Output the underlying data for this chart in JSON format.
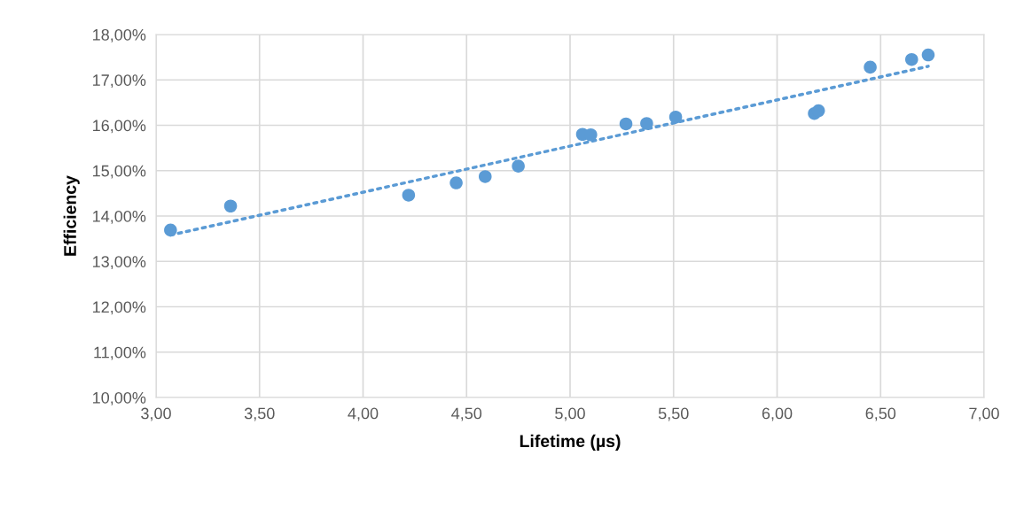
{
  "chart_data": {
    "type": "scatter",
    "xlabel": "Lifetime (µs)",
    "ylabel": "Efficiency",
    "x": [
      3.07,
      3.36,
      4.22,
      4.45,
      4.59,
      4.75,
      5.06,
      5.1,
      5.27,
      5.37,
      5.51,
      6.18,
      6.2,
      6.45,
      6.65,
      6.73
    ],
    "series": [
      {
        "color": "#5b9bd5",
        "marker": "circle",
        "values": [
          13.69,
          14.22,
          14.46,
          14.73,
          14.87,
          15.1,
          15.8,
          15.79,
          16.03,
          16.04,
          16.18,
          16.26,
          16.32,
          17.28,
          17.45,
          17.55
        ]
      },
      {
        "type": "line",
        "color": "#5b9bd5",
        "line_style": "dotted",
        "x": [
          3.07,
          6.73
        ],
        "values": [
          13.58,
          17.3
        ]
      }
    ],
    "xlim": [
      3.0,
      7.0
    ],
    "xticks": [
      {
        "value": 3.0,
        "label": "3,00"
      },
      {
        "value": 3.5,
        "label": "3,50"
      },
      {
        "value": 4.0,
        "label": "4,00"
      },
      {
        "value": 4.5,
        "label": "4,50"
      },
      {
        "value": 5.0,
        "label": "5,00"
      },
      {
        "value": 5.5,
        "label": "5,50"
      },
      {
        "value": 6.0,
        "label": "6,00"
      },
      {
        "value": 6.5,
        "label": "6,50"
      },
      {
        "value": 7.0,
        "label": "7,00"
      }
    ],
    "ylim": [
      10,
      18
    ],
    "yticks": [
      {
        "value": 10,
        "label": "10,00%"
      },
      {
        "value": 11,
        "label": "11,00%"
      },
      {
        "value": 12,
        "label": "12,00%"
      },
      {
        "value": 13,
        "label": "13,00%"
      },
      {
        "value": 14,
        "label": "14,00%"
      },
      {
        "value": 15,
        "label": "15,00%"
      },
      {
        "value": 16,
        "label": "16,00%"
      },
      {
        "value": 17,
        "label": "17,00%"
      },
      {
        "value": 18,
        "label": "18,00%"
      }
    ],
    "grid": true
  }
}
